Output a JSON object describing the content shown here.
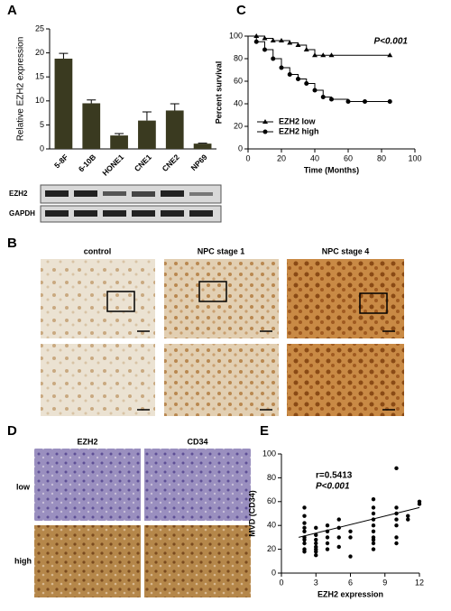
{
  "chart_data": [
    {
      "type": "bar",
      "categories": [
        "5-8F",
        "6-10B",
        "HONE1",
        "CNE1",
        "CNE2",
        "NP69"
      ],
      "values": [
        18.8,
        9.5,
        2.8,
        5.9,
        8.0,
        1.1
      ],
      "errors": [
        1.1,
        0.7,
        0.4,
        1.8,
        1.4,
        0.1
      ],
      "color": "#3a3a20",
      "ylabel": "Relative EZH2 expression",
      "ylim": [
        0,
        25
      ],
      "yticks": [
        0,
        5,
        10,
        15,
        20,
        25
      ]
    },
    {
      "type": "line",
      "step": true,
      "xlabel": "Time (Months)",
      "ylabel": "Percent survival",
      "annotation": "P<0.001",
      "xlim": [
        0,
        100
      ],
      "xticks": [
        0,
        20,
        40,
        60,
        80,
        100
      ],
      "ylim": [
        0,
        100
      ],
      "yticks": [
        0,
        20,
        40,
        60,
        80,
        100
      ],
      "legend": "lower left",
      "series": [
        {
          "name": "EZH2 low",
          "color": "#000000",
          "marker": "triangle",
          "x": [
            0,
            5,
            10,
            15,
            20,
            25,
            30,
            35,
            40,
            45,
            50,
            85
          ],
          "values": [
            100,
            100,
            98,
            96,
            96,
            94,
            92,
            88,
            83,
            83,
            83,
            83
          ]
        },
        {
          "name": "EZH2 high",
          "color": "#000000",
          "marker": "circle",
          "x": [
            0,
            5,
            10,
            15,
            20,
            25,
            30,
            35,
            40,
            45,
            50,
            60,
            70,
            85
          ],
          "values": [
            100,
            95,
            88,
            80,
            72,
            66,
            62,
            58,
            52,
            46,
            44,
            42,
            42,
            42
          ]
        }
      ]
    },
    {
      "type": "scatter",
      "xlabel": "EZH2 expression",
      "ylabel": "MVD (CD34)",
      "annotations": [
        "r=0.5413",
        "P<0.001"
      ],
      "xlim": [
        0,
        12
      ],
      "xticks": [
        0,
        3,
        6,
        9,
        12
      ],
      "ylim": [
        0,
        100
      ],
      "yticks": [
        0,
        20,
        40,
        60,
        80,
        100
      ],
      "color": "#000000",
      "x": [
        2,
        2,
        2,
        2,
        2,
        2,
        2,
        2,
        2,
        2,
        3,
        3,
        3,
        3,
        3,
        3,
        3,
        3,
        4,
        4,
        4,
        4,
        4,
        5,
        5,
        5,
        5,
        6,
        6,
        6,
        8,
        8,
        8,
        8,
        8,
        8,
        8,
        8,
        8,
        8,
        10,
        10,
        10,
        10,
        10,
        10,
        10,
        11,
        11,
        12,
        12
      ],
      "values": [
        55,
        48,
        42,
        38,
        35,
        30,
        28,
        25,
        20,
        18,
        38,
        32,
        28,
        25,
        22,
        20,
        18,
        15,
        40,
        35,
        30,
        25,
        20,
        45,
        38,
        30,
        22,
        35,
        30,
        14,
        62,
        55,
        50,
        45,
        40,
        35,
        30,
        28,
        25,
        20,
        88,
        55,
        50,
        45,
        40,
        30,
        25,
        48,
        45,
        60,
        58
      ],
      "regression_line": {
        "x": [
          1.5,
          12
        ],
        "values": [
          30,
          55
        ]
      }
    }
  ],
  "figure": {
    "panel_labels": [
      "A",
      "B",
      "C",
      "D",
      "E"
    ],
    "blot_labels": [
      "EZH2",
      "GAPDH"
    ],
    "ihc_b_columns": [
      "control",
      "NPC stage  1",
      "NPC stage  4"
    ],
    "ihc_d_columns": [
      "EZH2",
      "CD34"
    ],
    "ihc_d_rows": [
      "low",
      "high"
    ]
  }
}
